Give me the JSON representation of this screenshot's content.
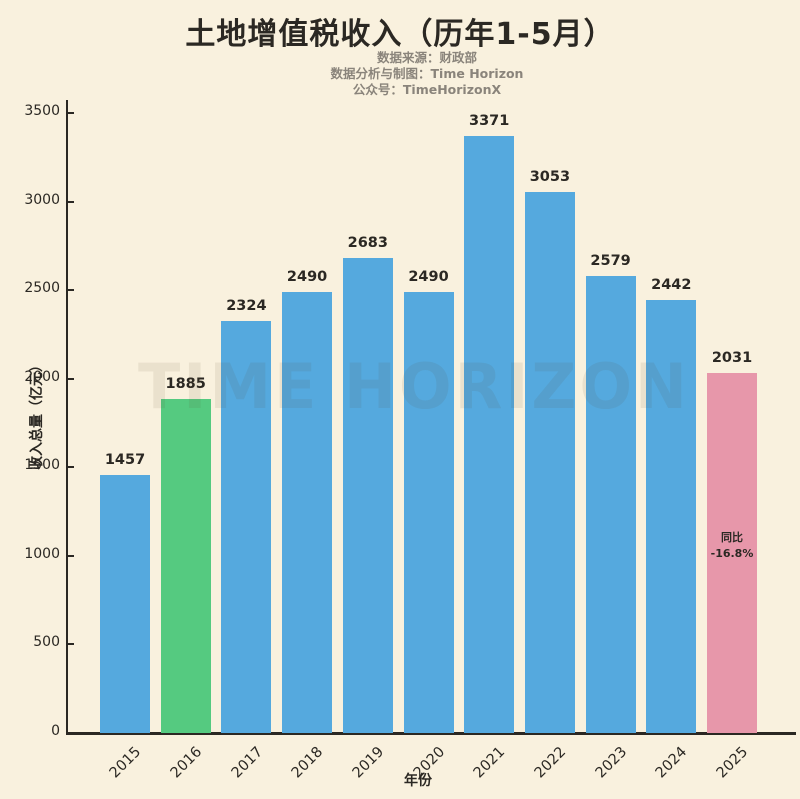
{
  "title": "土地增值税收入（历年1-5月）",
  "subtitle_lines": [
    "数据来源：财政部",
    "数据分析与制图：Time Horizon",
    "公众号：TimeHorizonX"
  ],
  "watermark": "TIME HORIZON",
  "colors": {
    "background": "#f9f1de",
    "bar_blue": "#55a9de",
    "bar_green": "#55ca80",
    "bar_pink": "#e797aa",
    "text_dark": "#2b2823",
    "subtitle_gray": "#8a847b",
    "axis": "#2b2823"
  },
  "chart_data": {
    "type": "bar",
    "title": "土地增值税收入（历年1-5月）",
    "xlabel": "年份",
    "ylabel": "收入总量（亿元）",
    "categories": [
      "2015",
      "2016",
      "2017",
      "2018",
      "2019",
      "2020",
      "2021",
      "2022",
      "2023",
      "2024",
      "2025"
    ],
    "values": [
      1457,
      1885,
      2324,
      2490,
      2683,
      2490,
      3371,
      3053,
      2579,
      2442,
      2031
    ],
    "bar_colors": [
      "#55a9de",
      "#55ca80",
      "#55a9de",
      "#55a9de",
      "#55a9de",
      "#55a9de",
      "#55a9de",
      "#55a9de",
      "#55a9de",
      "#55a9de",
      "#e797aa"
    ],
    "ylim": [
      0,
      3500
    ],
    "yticks": [
      0,
      500,
      1000,
      1500,
      2000,
      2500,
      3000,
      3500
    ],
    "grid": false,
    "legend_position": "none",
    "annotation": {
      "category": "2025",
      "lines": [
        "同比",
        "-16.8%"
      ]
    }
  }
}
